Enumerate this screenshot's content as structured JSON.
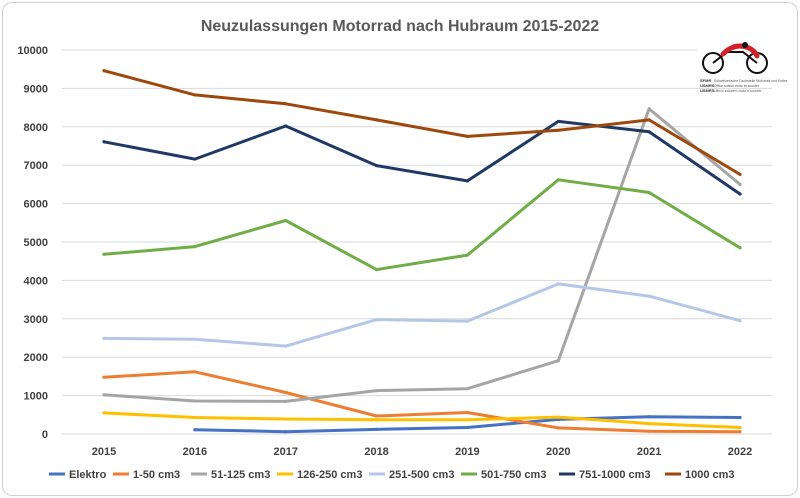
{
  "chart_data": {
    "type": "line",
    "title": "Neuzulassungen Motorrad nach Hubraum 2015-2022",
    "xlabel": "",
    "ylabel": "",
    "categories": [
      "2015",
      "2016",
      "2017",
      "2018",
      "2019",
      "2020",
      "2021",
      "2022"
    ],
    "ylim": [
      0,
      10000
    ],
    "yticks": [
      0,
      1000,
      2000,
      3000,
      4000,
      5000,
      6000,
      7000,
      8000,
      9000,
      10000
    ],
    "grid": true,
    "legend_position": "bottom",
    "series": [
      {
        "name": "Elektro",
        "color": "#4472c4",
        "values": [
          null,
          110,
          60,
          120,
          170,
          380,
          450,
          430
        ]
      },
      {
        "name": "1-50 cm3",
        "color": "#ed7d31",
        "values": [
          1480,
          1620,
          1080,
          470,
          560,
          160,
          70,
          60
        ]
      },
      {
        "name": "51-125 cm3",
        "color": "#a5a5a5",
        "values": [
          1020,
          860,
          850,
          1130,
          1180,
          1910,
          8470,
          6500
        ]
      },
      {
        "name": "126-250 cm3",
        "color": "#ffc000",
        "values": [
          550,
          430,
          390,
          370,
          370,
          440,
          270,
          170
        ]
      },
      {
        "name": "251-500 cm3",
        "color": "#b4c7e7",
        "values": [
          2490,
          2470,
          2290,
          2980,
          2940,
          3910,
          3590,
          2950
        ]
      },
      {
        "name": "501-750 cm3",
        "color": "#70ad47",
        "values": [
          4680,
          4880,
          5560,
          4280,
          4660,
          6620,
          6290,
          4850
        ]
      },
      {
        "name": "751-1000 cm3",
        "color": "#203864",
        "values": [
          7610,
          7160,
          8020,
          6990,
          6590,
          8140,
          7870,
          6250
        ]
      },
      {
        "name": "1000 cm3",
        "color": "#9e480e",
        "values": [
          9460,
          8830,
          8600,
          8180,
          7750,
          7910,
          8180,
          6760
        ]
      }
    ]
  },
  "logo": {
    "name": "motorbike-logo",
    "line1": "SFMR",
    "line2": "Schweizerische Fachstelle Motorrad und Roller",
    "line3": "USMRS",
    "line4": "Office suisse moto et scooter",
    "line5": "USMRS",
    "line6": "Ufficio svizzero moto e scooter"
  }
}
